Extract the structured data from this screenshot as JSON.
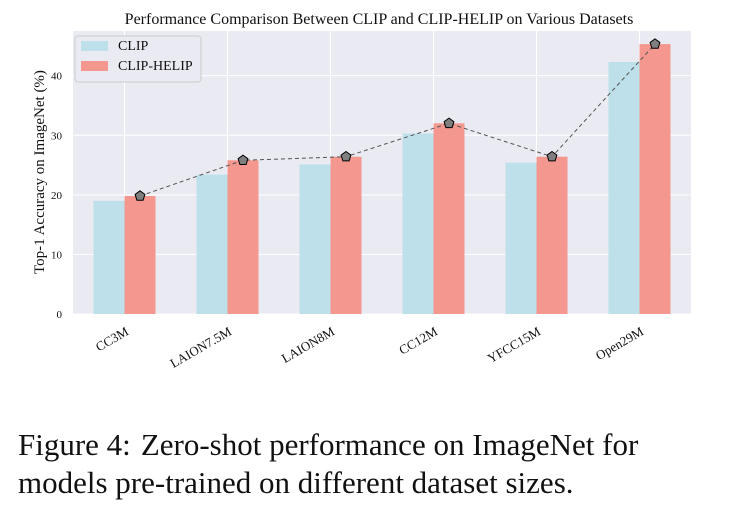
{
  "chart_data": {
    "type": "bar",
    "title": "Performance Comparison Between CLIP and CLIP-HELIP on Various Datasets",
    "ylabel": "Top-1 Accuracy on ImageNet (%)",
    "xlabel": "",
    "categories": [
      "CC3M",
      "LAION7.5M",
      "LAION8M",
      "CC12M",
      "YFCC15M",
      "Open29M"
    ],
    "series": [
      {
        "name": "CLIP",
        "values": [
          19.0,
          23.4,
          25.1,
          30.3,
          25.4,
          42.3
        ],
        "color": "#bde0ea"
      },
      {
        "name": "CLIP-HELIP",
        "values": [
          19.8,
          25.8,
          26.4,
          32.0,
          26.4,
          45.3
        ],
        "color": "#f4978e"
      }
    ],
    "line_overlay": {
      "series": "CLIP-HELIP",
      "style": "dashed",
      "marker": "pentagon",
      "marker_color": "#7f7f7f"
    },
    "ylim": [
      0,
      47.5
    ],
    "yticks": [
      0,
      10,
      20,
      30,
      40
    ],
    "grid": true,
    "legend_position": "top-left",
    "background": "#eaeaf2"
  },
  "caption": {
    "figure_label": "Figure 4:",
    "text": "Zero-shot performance on ImageNet for models pre-trained on different dataset sizes."
  }
}
